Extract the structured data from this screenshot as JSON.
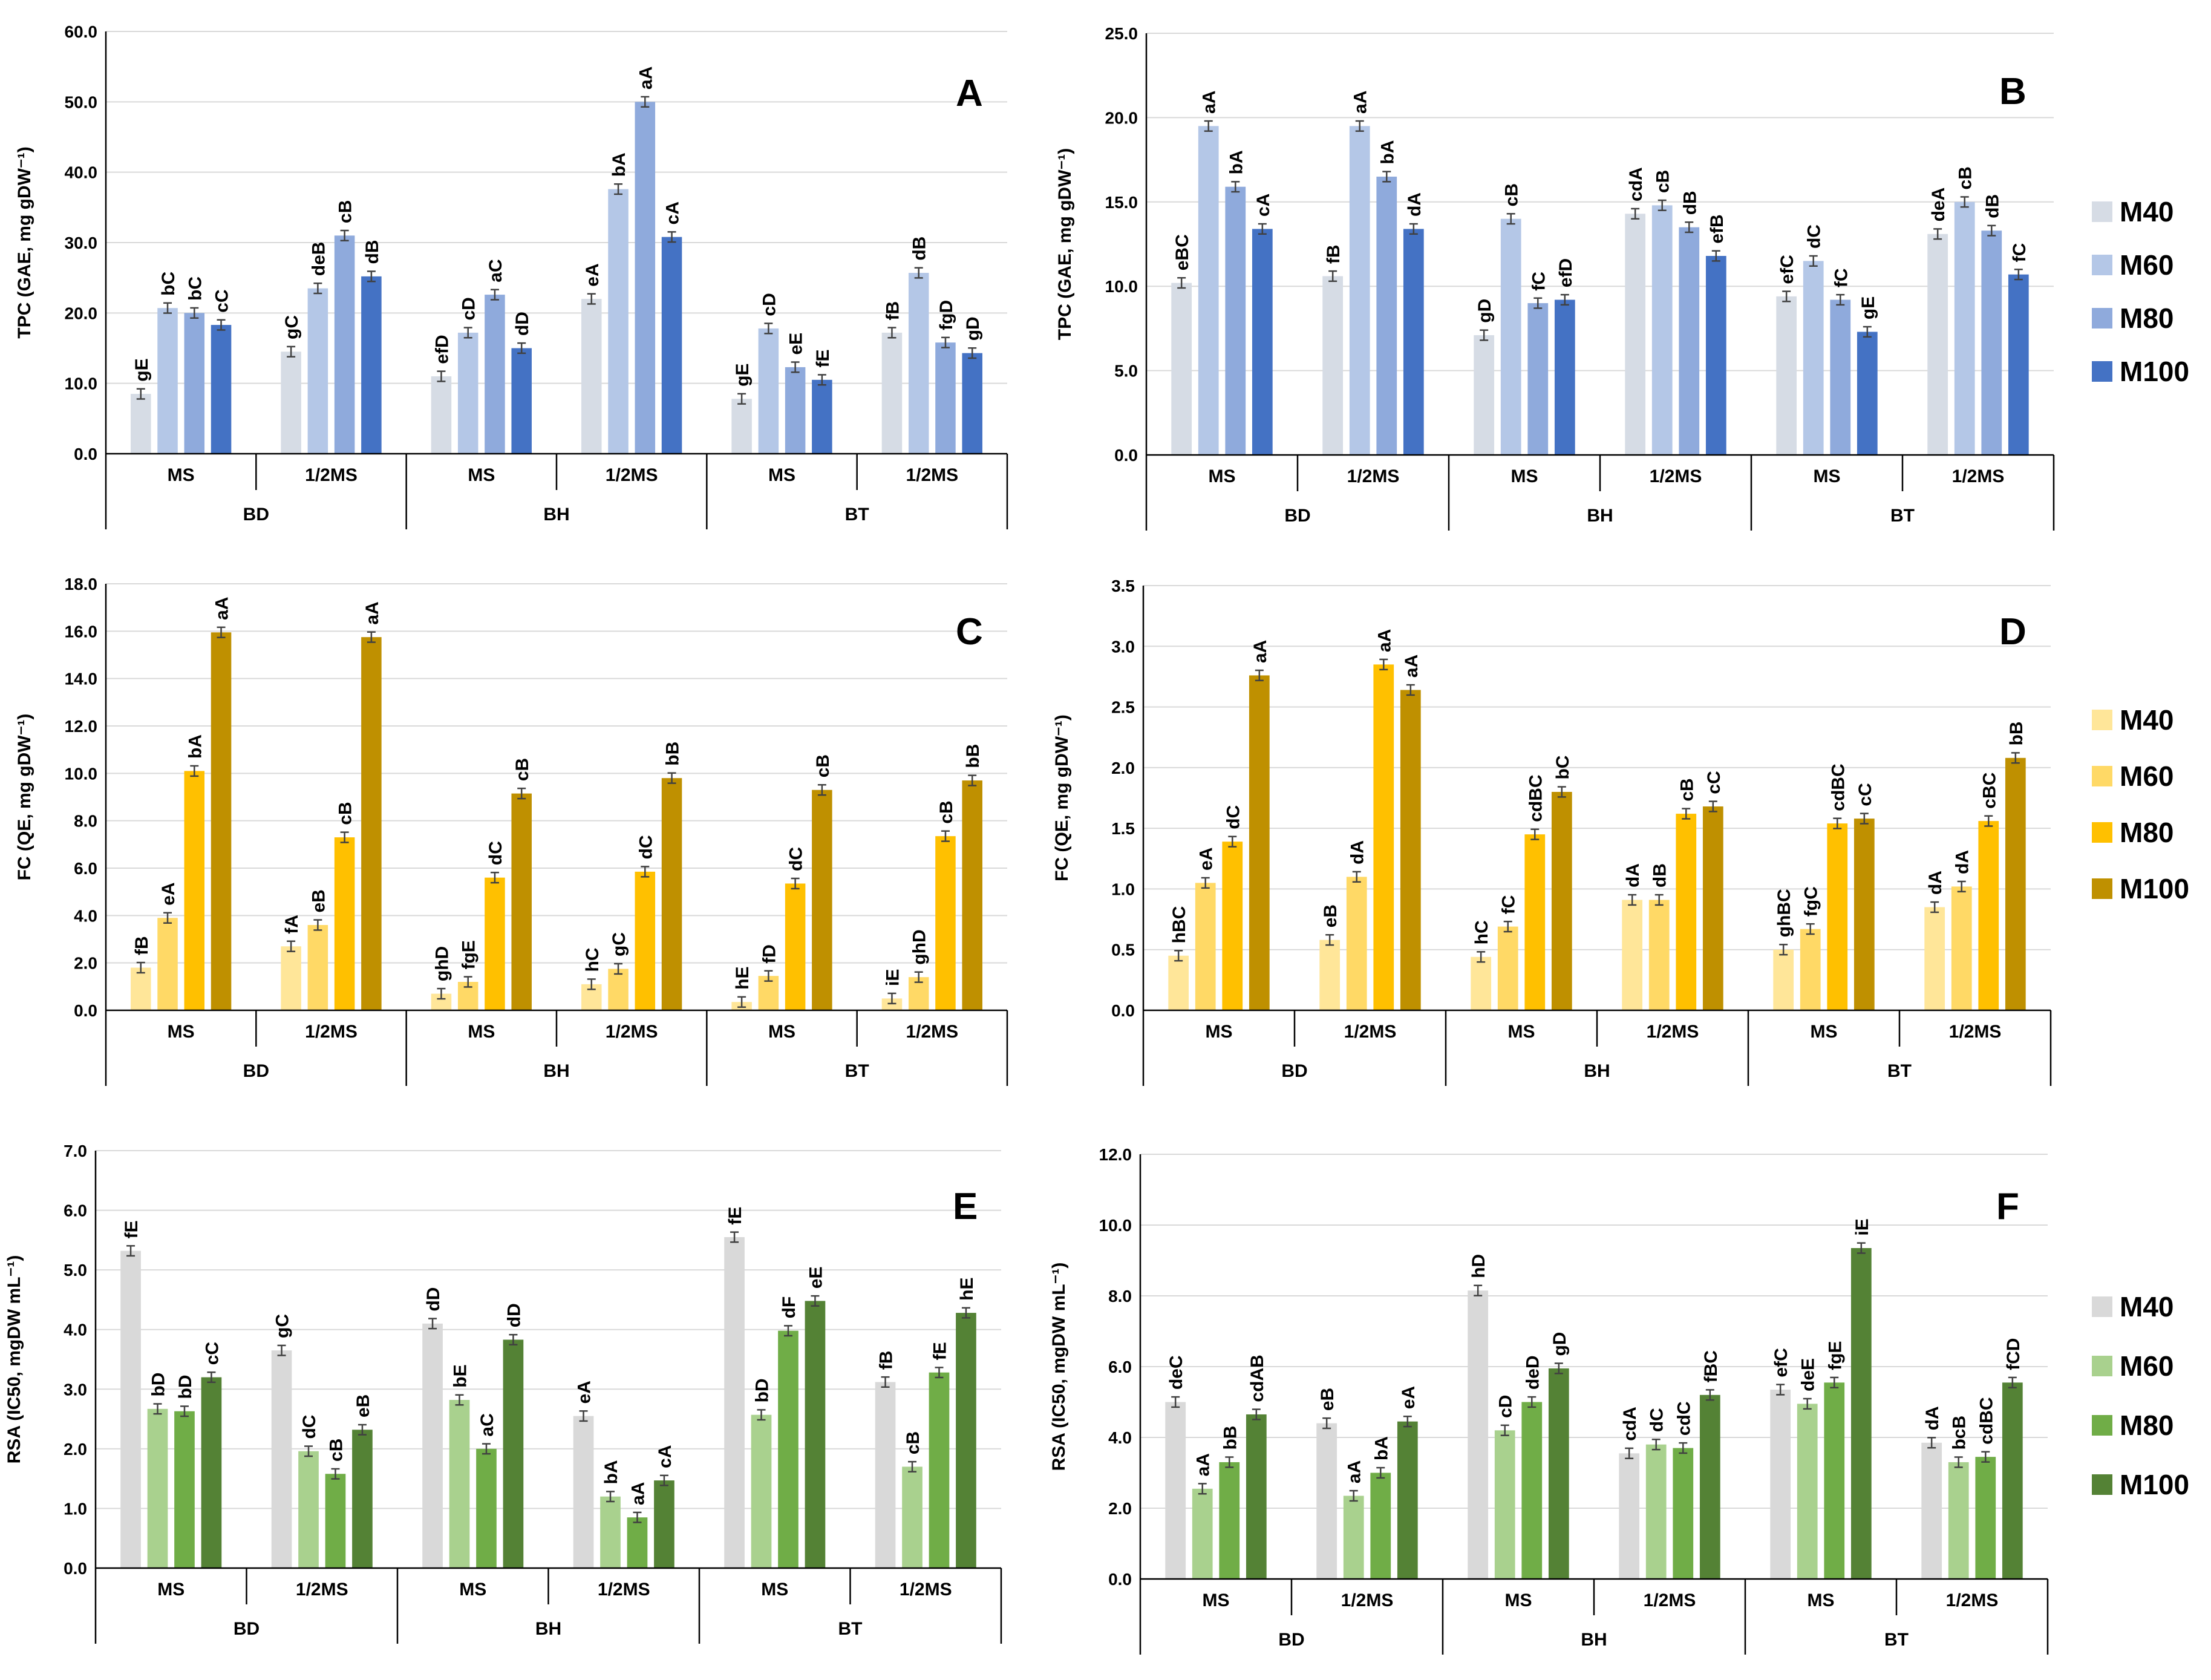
{
  "groups": {
    "media": [
      "MS",
      "1/2MS",
      "MS",
      "1/2MS",
      "MS",
      "1/2MS"
    ],
    "genotypes": [
      "BD",
      "BH",
      "BT"
    ]
  },
  "colors": {
    "blue": [
      "#d6dce5",
      "#b4c7e7",
      "#8faadc",
      "#4472c4"
    ],
    "yellow": [
      "#ffe699",
      "#ffd966",
      "#ffc000",
      "#bf9000"
    ],
    "green": [
      "#d9d9d9",
      "#a9d18e",
      "#70ad47",
      "#548235"
    ]
  },
  "legends": [
    {
      "palette": "blue",
      "labels": [
        "M40",
        "M60",
        "M80",
        "M100"
      ]
    },
    {
      "palette": "yellow",
      "labels": [
        "M40",
        "M60",
        "M80",
        "M100"
      ]
    },
    {
      "palette": "green",
      "labels": [
        "M40",
        "M60",
        "M80",
        "M100"
      ]
    }
  ],
  "chart_data": [
    {
      "type": "bar",
      "panel_letter": "A",
      "palette": "blue",
      "ylabel": "TPC (GAE, mg gDW⁻¹)",
      "ylim": [
        0,
        60
      ],
      "yticks": [
        "0.0",
        "10.0",
        "20.0",
        "30.0",
        "40.0",
        "50.0",
        "60.0"
      ],
      "categories": [
        "MS",
        "1/2MS",
        "MS",
        "1/2MS",
        "MS",
        "1/2MS"
      ],
      "series": [
        {
          "name": "M40",
          "values": [
            8.5,
            14.5,
            11.0,
            22.0,
            7.8,
            17.2
          ],
          "labels": [
            "gE",
            "gC",
            "efD",
            "eA",
            "gE",
            "fB"
          ]
        },
        {
          "name": "M60",
          "values": [
            20.7,
            23.5,
            17.2,
            37.6,
            17.8,
            25.7
          ],
          "labels": [
            "bC",
            "deB",
            "cD",
            "bA",
            "cD",
            "dB"
          ]
        },
        {
          "name": "M80",
          "values": [
            20.0,
            31.0,
            22.6,
            50.0,
            12.3,
            15.8
          ],
          "labels": [
            "bC",
            "cB",
            "aC",
            "aA",
            "eE",
            "fgD"
          ]
        },
        {
          "name": "M100",
          "values": [
            18.3,
            25.2,
            15.0,
            30.8,
            10.5,
            14.3
          ],
          "labels": [
            "cC",
            "dB",
            "dD",
            "cA",
            "fE",
            "gD"
          ]
        }
      ]
    },
    {
      "type": "bar",
      "panel_letter": "B",
      "palette": "blue",
      "ylabel": "TPC (GAE, mg gDW⁻¹)",
      "ylim": [
        0,
        25
      ],
      "yticks": [
        "0.0",
        "5.0",
        "10.0",
        "15.0",
        "20.0",
        "25.0"
      ],
      "categories": [
        "MS",
        "1/2MS",
        "MS",
        "1/2MS",
        "MS",
        "1/2MS"
      ],
      "series": [
        {
          "name": "M40",
          "values": [
            10.2,
            10.6,
            7.1,
            14.3,
            9.4,
            13.1
          ],
          "labels": [
            "eBC",
            "fB",
            "gD",
            "cdA",
            "efC",
            "deA"
          ]
        },
        {
          "name": "M60",
          "values": [
            19.5,
            19.5,
            14.0,
            14.8,
            11.5,
            15.0
          ],
          "labels": [
            "aA",
            "aA",
            "cB",
            "cB",
            "dC",
            "cB"
          ]
        },
        {
          "name": "M80",
          "values": [
            15.9,
            16.5,
            9.0,
            13.5,
            9.2,
            13.3
          ],
          "labels": [
            "bA",
            "bA",
            "fC",
            "dB",
            "fC",
            "dB"
          ]
        },
        {
          "name": "M100",
          "values": [
            13.4,
            13.4,
            9.2,
            11.8,
            7.3,
            10.7
          ],
          "labels": [
            "cA",
            "dA",
            "efD",
            "efB",
            "gE",
            "fC"
          ]
        }
      ]
    },
    {
      "type": "bar",
      "panel_letter": "C",
      "palette": "yellow",
      "ylabel": "FC (QE, mg gDW⁻¹)",
      "ylim": [
        0,
        18
      ],
      "yticks": [
        "0.0",
        "2.0",
        "4.0",
        "6.0",
        "8.0",
        "10.0",
        "12.0",
        "14.0",
        "16.0",
        "18.0"
      ],
      "categories": [
        "MS",
        "1/2MS",
        "MS",
        "1/2MS",
        "MS",
        "1/2MS"
      ],
      "series": [
        {
          "name": "M40",
          "values": [
            1.8,
            2.7,
            0.7,
            1.1,
            0.35,
            0.5
          ],
          "labels": [
            "fB",
            "fA",
            "ghD",
            "hC",
            "hE",
            "iE"
          ]
        },
        {
          "name": "M60",
          "values": [
            3.9,
            3.6,
            1.2,
            1.75,
            1.45,
            1.4
          ],
          "labels": [
            "eA",
            "eB",
            "fgE",
            "gC",
            "fD",
            "ghD"
          ]
        },
        {
          "name": "M80",
          "values": [
            10.1,
            7.3,
            5.6,
            5.85,
            5.35,
            7.35
          ],
          "labels": [
            "bA",
            "cB",
            "dC",
            "dC",
            "dC",
            "cB"
          ]
        },
        {
          "name": "M100",
          "values": [
            15.95,
            15.75,
            9.15,
            9.8,
            9.3,
            9.7
          ],
          "labels": [
            "aA",
            "aA",
            "cB",
            "bB",
            "cB",
            "bB"
          ]
        }
      ]
    },
    {
      "type": "bar",
      "panel_letter": "D",
      "palette": "yellow",
      "ylabel": "FC (QE, mg gDW⁻¹)",
      "ylim": [
        0,
        3.5
      ],
      "yticks": [
        "0.0",
        "0.5",
        "1.0",
        "1.5",
        "2.0",
        "2.5",
        "3.0",
        "3.5"
      ],
      "categories": [
        "MS",
        "1/2MS",
        "MS",
        "1/2MS",
        "MS",
        "1/2MS"
      ],
      "series": [
        {
          "name": "M40",
          "values": [
            0.45,
            0.58,
            0.44,
            0.91,
            0.5,
            0.85
          ],
          "labels": [
            "hBC",
            "eB",
            "hC",
            "dA",
            "ghBC",
            "dA"
          ]
        },
        {
          "name": "M60",
          "values": [
            1.05,
            1.1,
            0.69,
            0.91,
            0.67,
            1.02
          ],
          "labels": [
            "eA",
            "dA",
            "fC",
            "dB",
            "fgC",
            "dA"
          ]
        },
        {
          "name": "M80",
          "values": [
            1.39,
            2.85,
            1.45,
            1.62,
            1.54,
            1.56
          ],
          "labels": [
            "dC",
            "aA",
            "cdBC",
            "cB",
            "cdBC",
            "cBC"
          ]
        },
        {
          "name": "M100",
          "values": [
            2.76,
            2.64,
            1.8,
            1.68,
            1.58,
            2.08
          ],
          "labels": [
            "aA",
            "aA",
            "bC",
            "cC",
            "cC",
            "bB"
          ]
        }
      ]
    },
    {
      "type": "bar",
      "panel_letter": "E",
      "palette": "green",
      "ylabel": "RSA (IC50, mgDW mL⁻¹)",
      "ylim": [
        0,
        7
      ],
      "yticks": [
        "0.0",
        "1.0",
        "2.0",
        "3.0",
        "4.0",
        "5.0",
        "6.0",
        "7.0"
      ],
      "categories": [
        "MS",
        "1/2MS",
        "MS",
        "1/2MS",
        "MS",
        "1/2MS"
      ],
      "series": [
        {
          "name": "M40",
          "values": [
            5.32,
            3.65,
            4.1,
            2.55,
            5.55,
            3.12
          ],
          "labels": [
            "fE",
            "gC",
            "dD",
            "eA",
            "fE",
            "fB"
          ]
        },
        {
          "name": "M60",
          "values": [
            2.67,
            1.96,
            2.82,
            1.2,
            2.57,
            1.7
          ],
          "labels": [
            "bD",
            "dC",
            "bE",
            "bA",
            "bD",
            "cB"
          ]
        },
        {
          "name": "M80",
          "values": [
            2.63,
            1.58,
            2.0,
            0.85,
            3.98,
            3.28
          ],
          "labels": [
            "bD",
            "cB",
            "aC",
            "aA",
            "dF",
            "fE"
          ]
        },
        {
          "name": "M100",
          "values": [
            3.2,
            2.32,
            3.83,
            1.47,
            4.48,
            4.28
          ],
          "labels": [
            "cC",
            "eB",
            "dD",
            "cA",
            "eE",
            "hE"
          ]
        }
      ]
    },
    {
      "type": "bar",
      "panel_letter": "F",
      "palette": "green",
      "ylabel": "RSA (IC50, mgDW mL⁻¹)",
      "ylim": [
        0,
        12
      ],
      "yticks": [
        "0.0",
        "2.0",
        "4.0",
        "6.0",
        "8.0",
        "10.0",
        "12.0"
      ],
      "categories": [
        "MS",
        "1/2MS",
        "MS",
        "1/2MS",
        "MS",
        "1/2MS"
      ],
      "series": [
        {
          "name": "M40",
          "values": [
            5.0,
            4.4,
            8.15,
            3.55,
            5.35,
            3.85
          ],
          "labels": [
            "deC",
            "eB",
            "hD",
            "cdA",
            "efC",
            "dA"
          ]
        },
        {
          "name": "M60",
          "values": [
            2.55,
            2.35,
            4.2,
            3.8,
            4.95,
            3.3
          ],
          "labels": [
            "aA",
            "aA",
            "cD",
            "dC",
            "deE",
            "bcB"
          ]
        },
        {
          "name": "M80",
          "values": [
            3.3,
            3.0,
            5.0,
            3.7,
            5.55,
            3.45
          ],
          "labels": [
            "bB",
            "bA",
            "deD",
            "cdC",
            "fgE",
            "cdBC"
          ]
        },
        {
          "name": "M100",
          "values": [
            4.65,
            4.45,
            5.95,
            5.2,
            9.35,
            5.55
          ],
          "labels": [
            "cdAB",
            "eA",
            "gD",
            "fBC",
            "iE",
            "fCD"
          ]
        }
      ]
    }
  ]
}
